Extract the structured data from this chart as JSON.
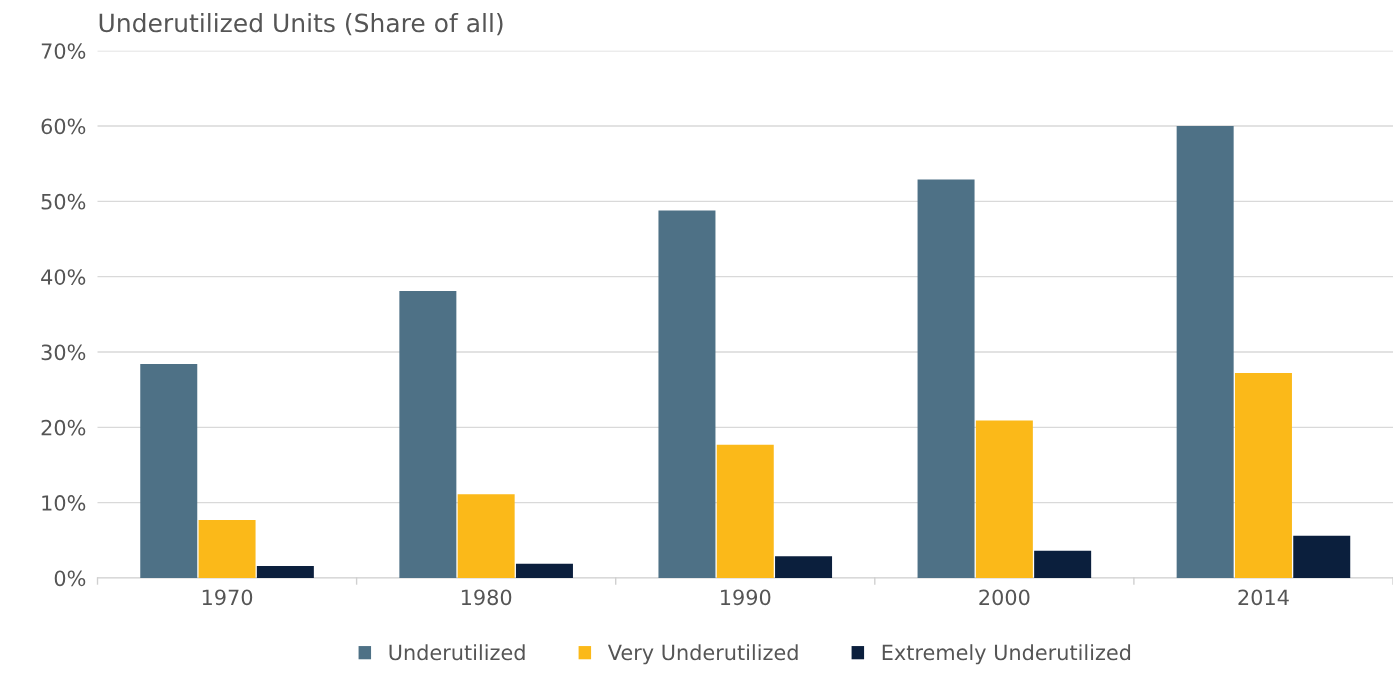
{
  "chart_data": {
    "type": "bar",
    "title": "Underutilized Units (Share of all)",
    "categories": [
      "1970",
      "1980",
      "1990",
      "2000",
      "2014"
    ],
    "series": [
      {
        "name": "Underutilized",
        "color": "#4e7186",
        "values": [
          28.4,
          38.1,
          48.8,
          52.9,
          60.0
        ]
      },
      {
        "name": "Very Underutilized",
        "color": "#fbb919",
        "values": [
          7.7,
          11.1,
          17.7,
          20.9,
          27.2
        ]
      },
      {
        "name": "Extremely Underutilized",
        "color": "#0b1f3d",
        "values": [
          1.6,
          1.9,
          2.9,
          3.6,
          5.6
        ]
      }
    ],
    "ylim": [
      0,
      70
    ],
    "yticks": [
      {
        "value": 0,
        "label": "0%"
      },
      {
        "value": 10,
        "label": "10%"
      },
      {
        "value": 20,
        "label": "20%"
      },
      {
        "value": 30,
        "label": "30%"
      },
      {
        "value": 40,
        "label": "40%"
      },
      {
        "value": 50,
        "label": "50%"
      },
      {
        "value": 60,
        "label": "60%"
      },
      {
        "value": 70,
        "label": "70%"
      }
    ],
    "grid": "y",
    "legend": "bottom"
  }
}
